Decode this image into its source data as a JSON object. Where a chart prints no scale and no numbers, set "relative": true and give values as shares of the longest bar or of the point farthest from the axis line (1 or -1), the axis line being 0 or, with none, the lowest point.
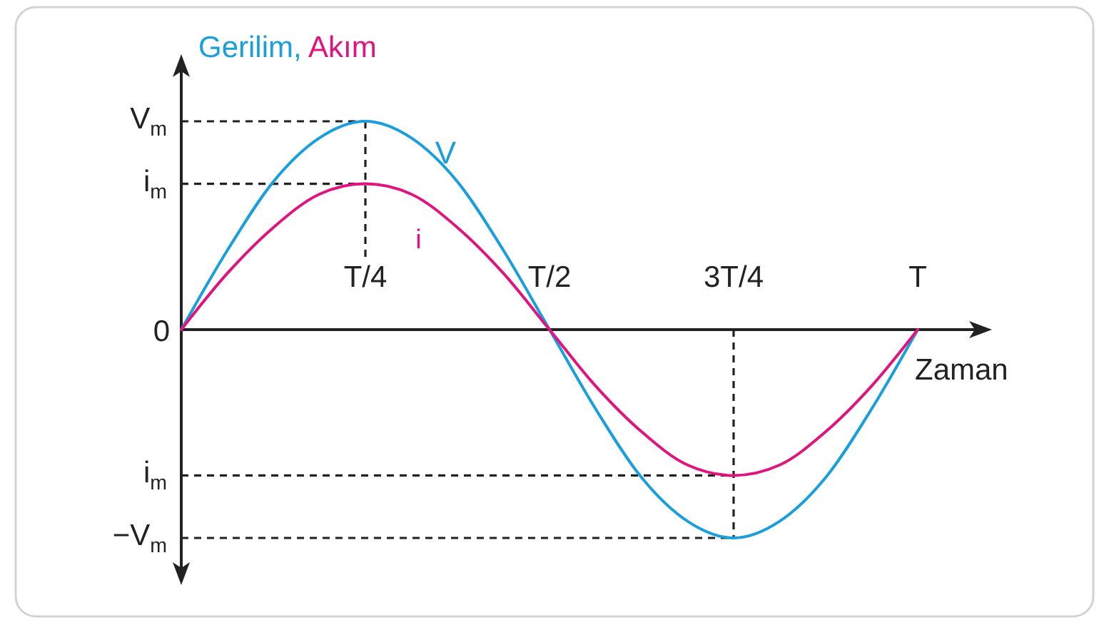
{
  "chart_data": {
    "type": "line",
    "ylabel": "Gerilim, Akım",
    "xlabel": "Zaman",
    "relative": true,
    "categories": [
      null,
      null,
      null,
      null,
      "T/4",
      null,
      null,
      null,
      "T/2",
      null,
      null,
      null,
      "3T/4",
      null,
      null,
      null,
      "T"
    ],
    "series": [
      {
        "name": "V",
        "color": "#1a9fdc",
        "values": [
          0,
          0.38,
          0.71,
          0.92,
          1,
          0.92,
          0.71,
          0.38,
          0,
          -0.38,
          -0.71,
          -0.92,
          -1,
          -0.92,
          -0.71,
          -0.38,
          0
        ]
      },
      {
        "name": "i",
        "color": "#e0147f",
        "values": [
          0,
          0.27,
          0.49,
          0.65,
          0.7,
          0.65,
          0.49,
          0.27,
          0,
          -0.27,
          -0.49,
          -0.65,
          -0.7,
          -0.65,
          -0.49,
          -0.27,
          0
        ]
      }
    ],
    "ref_lines": [
      {
        "axis": "y",
        "value": 1,
        "label": "V$_{m}$",
        "line_style": "dashed"
      },
      {
        "axis": "y",
        "value": 0.7,
        "label": "i$_{m}$",
        "line_style": "dashed"
      },
      {
        "axis": "y",
        "value": -0.7,
        "label": "i$_{m}$",
        "line_style": "dashed"
      },
      {
        "axis": "y",
        "value": -1,
        "label": "−V$_{m}$",
        "line_style": "dashed"
      },
      {
        "axis": "x",
        "value": "T/4",
        "line_style": "dashed"
      },
      {
        "axis": "x",
        "value": "3T/4",
        "line_style": "dashed"
      }
    ],
    "annotations": [
      "0"
    ]
  }
}
